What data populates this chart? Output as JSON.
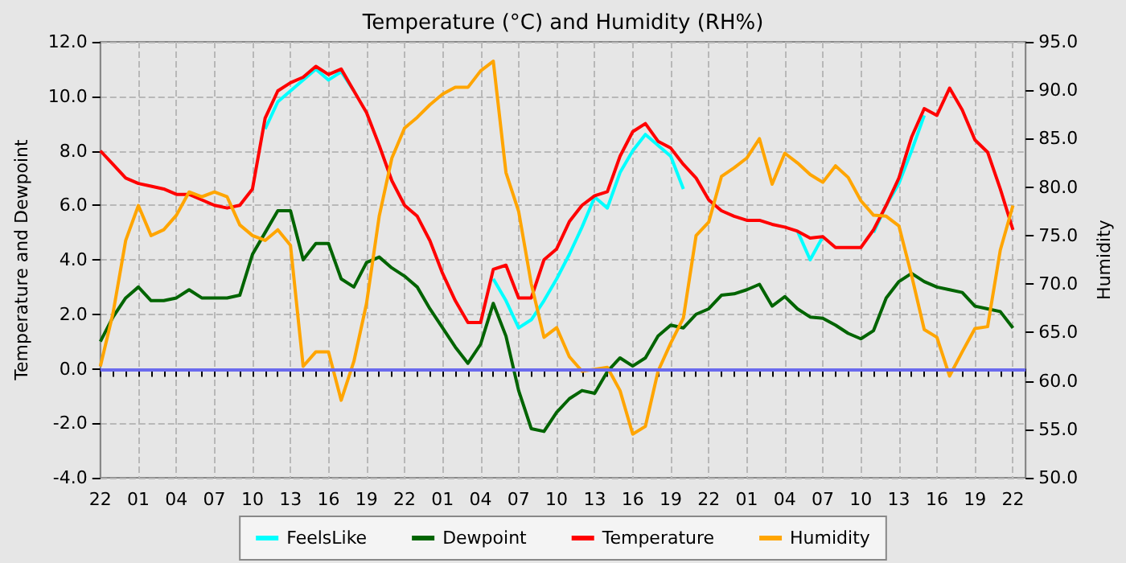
{
  "chart_data": {
    "type": "line",
    "title": "Temperature (°C) and Humidity (RH%)",
    "ylabel": "Temperature and Dewpoint",
    "y2label": "Humidity",
    "categories": [
      "22",
      null,
      null,
      "01",
      null,
      null,
      "04",
      null,
      null,
      "07",
      null,
      null,
      "10",
      null,
      null,
      "13",
      null,
      null,
      "16",
      null,
      null,
      "19",
      null,
      null,
      "22",
      null,
      null,
      "01",
      null,
      null,
      "04",
      null,
      null,
      "07",
      null,
      null,
      "10",
      null,
      null,
      "13",
      null,
      null,
      "16",
      null,
      null,
      "19",
      null,
      null,
      "22",
      null,
      null,
      "01",
      null,
      null,
      "04",
      null,
      null,
      "07",
      null,
      null,
      "10",
      null,
      null,
      "13",
      null,
      null,
      "16",
      null,
      null,
      "19",
      null,
      null,
      "22",
      null
    ],
    "ylim": [
      -4,
      12
    ],
    "yticks": [
      {
        "value": -4,
        "label": "-4.0"
      },
      {
        "value": -2,
        "label": "-2.0"
      },
      {
        "value": 0,
        "label": "0.0"
      },
      {
        "value": 2,
        "label": "2.0"
      },
      {
        "value": 4,
        "label": "4.0"
      },
      {
        "value": 6,
        "label": "6.0"
      },
      {
        "value": 8,
        "label": "8.0"
      },
      {
        "value": 10,
        "label": "10.0"
      },
      {
        "value": 12,
        "label": "12.0"
      }
    ],
    "y2lim": [
      50,
      95
    ],
    "y2ticks": [
      {
        "value": 50,
        "label": "50.0"
      },
      {
        "value": 55,
        "label": "55.0"
      },
      {
        "value": 60,
        "label": "60.0"
      },
      {
        "value": 65,
        "label": "65.0"
      },
      {
        "value": 70,
        "label": "70.0"
      },
      {
        "value": 75,
        "label": "75.0"
      },
      {
        "value": 80,
        "label": "80.0"
      },
      {
        "value": 85,
        "label": "85.0"
      },
      {
        "value": 90,
        "label": "90.0"
      },
      {
        "value": 95,
        "label": "95.0"
      }
    ],
    "grid": true,
    "legend": "bottom",
    "marker": "none",
    "line_style": "solid",
    "ref_lines": [
      {
        "axis": "y",
        "value": 0,
        "color": "#6a6aee"
      }
    ],
    "series": [
      {
        "name": "FeelsLike",
        "color": "#00ffff",
        "values": [
          null,
          null,
          null,
          null,
          null,
          null,
          null,
          null,
          null,
          null,
          null,
          null,
          null,
          8.8,
          9.8,
          10.2,
          10.6,
          11.0,
          10.6,
          10.9,
          10.2,
          null,
          null,
          null,
          null,
          null,
          null,
          null,
          null,
          null,
          null,
          3.3,
          2.5,
          1.5,
          1.8,
          2.5,
          3.3,
          4.2,
          5.2,
          6.3,
          5.9,
          7.2,
          8.0,
          8.6,
          8.2,
          7.8,
          6.6,
          null,
          null,
          null,
          null,
          null,
          null,
          null,
          null,
          5.05,
          4.0,
          4.85,
          null,
          null,
          null,
          5.0,
          6.0,
          6.8,
          8.0,
          9.3,
          null,
          null,
          null,
          null,
          null,
          null,
          null,
          null
        ]
      },
      {
        "name": "Dewpoint",
        "color": "#006400",
        "values": [
          1.0,
          1.9,
          2.6,
          3.0,
          2.5,
          2.5,
          2.6,
          2.9,
          2.6,
          2.6,
          2.6,
          2.7,
          4.2,
          5.0,
          5.8,
          5.8,
          4.0,
          4.6,
          4.6,
          3.3,
          3.0,
          3.9,
          4.1,
          3.7,
          3.4,
          3.0,
          2.2,
          1.5,
          0.8,
          0.2,
          0.9,
          2.4,
          1.2,
          -0.8,
          -2.2,
          -2.3,
          -1.6,
          -1.1,
          -0.8,
          -0.9,
          -0.1,
          0.4,
          0.1,
          0.4,
          1.2,
          1.6,
          1.5,
          2.0,
          2.2,
          2.7,
          2.75,
          2.9,
          3.1,
          2.3,
          2.65,
          2.2,
          1.9,
          1.85,
          1.6,
          1.3,
          1.1,
          1.4,
          2.6,
          3.2,
          3.5,
          3.2,
          3.0,
          2.9,
          2.8,
          2.3,
          2.2,
          2.1,
          1.5,
          null
        ]
      },
      {
        "name": "Temperature",
        "color": "#ff0000",
        "values": [
          8.0,
          7.5,
          7.0,
          6.8,
          6.7,
          6.6,
          6.4,
          6.4,
          6.2,
          6.0,
          5.9,
          6.0,
          6.6,
          9.2,
          10.2,
          10.5,
          10.7,
          11.1,
          10.8,
          11.0,
          10.2,
          9.4,
          8.2,
          6.9,
          6.0,
          5.6,
          4.7,
          3.5,
          2.5,
          1.7,
          1.7,
          3.65,
          3.8,
          2.6,
          2.6,
          4.0,
          4.4,
          5.4,
          6.0,
          6.35,
          6.5,
          7.8,
          8.7,
          9.0,
          8.35,
          8.1,
          7.5,
          7.0,
          6.2,
          5.8,
          5.6,
          5.45,
          5.45,
          5.3,
          5.2,
          5.05,
          4.8,
          4.85,
          4.45,
          4.45,
          4.45,
          5.1,
          6.0,
          7.0,
          8.5,
          9.55,
          9.3,
          10.3,
          9.5,
          8.4,
          7.95,
          6.6,
          5.1,
          null
        ]
      },
      {
        "name": "Humidity",
        "color": "#ffa500",
        "axis": "y2",
        "values": [
          61.5,
          67,
          74.5,
          78.1,
          75,
          75.6,
          77.1,
          79.5,
          79,
          79.5,
          79,
          76.1,
          75,
          74.5,
          75.6,
          74,
          61.5,
          63,
          63,
          58,
          62,
          68,
          77,
          83,
          86.1,
          87.2,
          88.5,
          89.6,
          90.3,
          90.3,
          92,
          93,
          81.5,
          77.5,
          70,
          64.5,
          65.5,
          62.5,
          61,
          61.2,
          61.4,
          59,
          54.5,
          55.3,
          61,
          63.9,
          66.5,
          75,
          76.4,
          81.1,
          82,
          83,
          85,
          80.3,
          83.5,
          82.5,
          81.3,
          80.5,
          82.2,
          81,
          78.6,
          77.1,
          77,
          76,
          70.9,
          65.3,
          64.5,
          60.5,
          63,
          65.4,
          65.6,
          73.5,
          78.1,
          null
        ]
      }
    ]
  }
}
